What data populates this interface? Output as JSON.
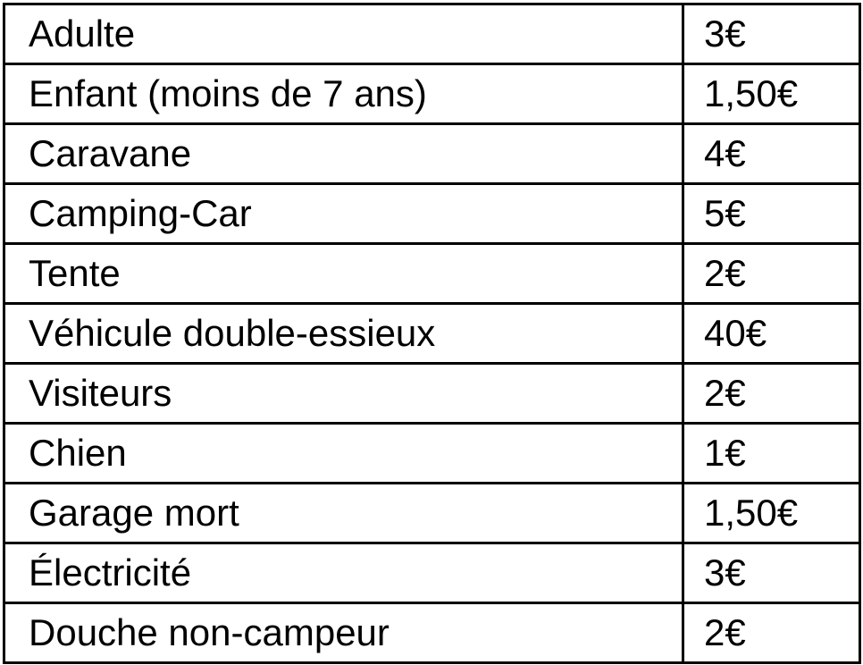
{
  "table": {
    "description": "campsite-tariff-table",
    "columns": [
      "item",
      "price"
    ],
    "rows": [
      {
        "label": "Adulte",
        "price": "3€"
      },
      {
        "label": "Enfant (moins de 7 ans)",
        "price": "1,50€"
      },
      {
        "label": "Caravane",
        "price": "4€"
      },
      {
        "label": "Camping-Car",
        "price": "5€"
      },
      {
        "label": "Tente",
        "price": "2€"
      },
      {
        "label": "Véhicule double-essieux",
        "price": "40€"
      },
      {
        "label": "Visiteurs",
        "price": "2€"
      },
      {
        "label": "Chien",
        "price": "1€"
      },
      {
        "label": "Garage mort",
        "price": "1,50€"
      },
      {
        "label": "Électricité",
        "price": "3€"
      },
      {
        "label": "Douche non-campeur",
        "price": "2€"
      }
    ],
    "colors": {
      "border": "#000000",
      "text": "#000000",
      "background": "#ffffff"
    }
  }
}
